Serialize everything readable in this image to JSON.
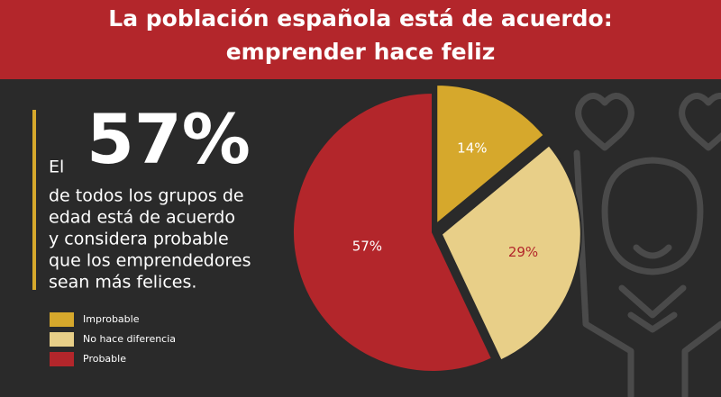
{
  "chart_data": {
    "type": "pie",
    "title_lines": [
      "La población española está de acuerdo:",
      "emprender hace feliz"
    ],
    "callout": {
      "lead": "El",
      "figure": "57%",
      "lines": [
        "de todos los grupos de",
        "edad está de acuerdo",
        "y considera probable",
        "que los emprendedores",
        "sean más felices."
      ]
    },
    "categories": [
      "Improbable",
      "No hace diferencia",
      "Probable"
    ],
    "values": [
      14,
      29,
      57
    ],
    "value_labels": [
      "14%",
      "29%",
      "57%"
    ],
    "colors": [
      "#d6a82c",
      "#e8cf88",
      "#b3262b"
    ],
    "label_colors": [
      "#ffffff",
      "#b3262b",
      "#ffffff"
    ],
    "exploded": [
      true,
      true,
      false
    ],
    "legend": "bottom-left"
  }
}
